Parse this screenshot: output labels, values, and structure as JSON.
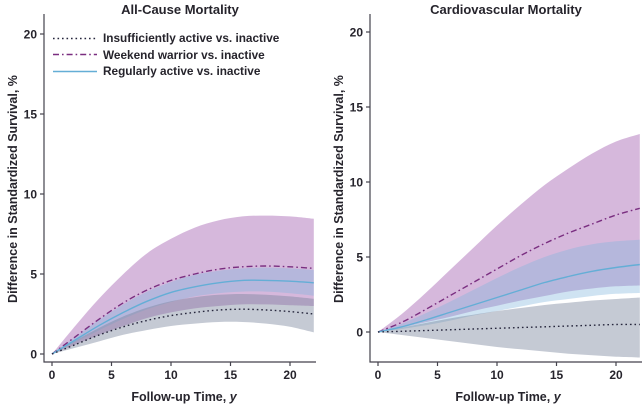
{
  "figure": {
    "x_axis_label": "Follow-up Time,",
    "x_axis_unit": "y",
    "y_axis_label": "Difference in Standardized Survival, %",
    "x_ticks": [
      "0",
      "5",
      "10",
      "15",
      "20"
    ],
    "y_ticks": [
      "0",
      "5",
      "10",
      "15",
      "20"
    ]
  },
  "legend": {
    "position": "top-left of first panel",
    "items": [
      {
        "label": "Insufficiently active vs. inactive",
        "series": "insufficiently_active",
        "style": "dotted"
      },
      {
        "label": "Weekend warrior vs. inactive",
        "series": "weekend_warrior",
        "style": "dash-dot"
      },
      {
        "label": "Regularly active vs. inactive",
        "series": "regularly_active",
        "style": "solid"
      }
    ]
  },
  "colors": {
    "text": "#26242c",
    "axis": "#44424c",
    "insufficiently_active_line": "#26263c",
    "weekend_warrior_line": "#7a2e80",
    "regularly_active_line": "#64aed6",
    "insufficiently_active_band": "rgba(117,129,153,0.42)",
    "weekend_warrior_band": "rgba(177,118,187,0.52)",
    "regularly_active_band": "rgba(129,181,221,0.38)"
  },
  "chart_data": [
    {
      "type": "line",
      "title": "All-Cause Mortality",
      "xlabel": "Follow-up Time, y",
      "ylabel": "Difference in Standardized Survival, %",
      "xlim": [
        0,
        22.5
      ],
      "ylim": [
        -0.5,
        21
      ],
      "grid": false,
      "x": [
        0,
        2,
        4,
        6,
        8,
        10,
        12,
        14,
        16,
        18,
        20,
        22
      ],
      "series": [
        {
          "name": "Weekend warrior vs. inactive",
          "line_style": "dash-dot",
          "color": "#7a2e80",
          "band_color": "rgba(177,118,187,0.52)",
          "values": [
            0,
            1.1,
            2.2,
            3.2,
            4.0,
            4.6,
            5.0,
            5.3,
            5.45,
            5.5,
            5.45,
            5.35
          ],
          "ci_upper": [
            0,
            1.8,
            3.5,
            5.0,
            6.3,
            7.2,
            7.9,
            8.35,
            8.6,
            8.65,
            8.6,
            8.45
          ],
          "ci_lower": [
            0,
            0.6,
            1.2,
            1.75,
            2.25,
            2.6,
            2.85,
            3.0,
            3.1,
            3.1,
            3.05,
            3.0
          ]
        },
        {
          "name": "Regularly active vs. inactive",
          "line_style": "solid",
          "color": "#64aed6",
          "band_color": "rgba(129,181,221,0.38)",
          "values": [
            0,
            0.9,
            1.8,
            2.6,
            3.3,
            3.85,
            4.2,
            4.45,
            4.6,
            4.6,
            4.55,
            4.45
          ],
          "ci_upper": [
            0,
            1.1,
            2.15,
            3.1,
            3.9,
            4.5,
            4.95,
            5.2,
            5.35,
            5.4,
            5.35,
            5.25
          ],
          "ci_lower": [
            0,
            0.75,
            1.5,
            2.2,
            2.8,
            3.25,
            3.6,
            3.8,
            3.9,
            3.9,
            3.8,
            3.65
          ]
        },
        {
          "name": "Insufficiently active vs. inactive",
          "line_style": "dotted",
          "color": "#26263c",
          "band_color": "rgba(117,129,153,0.42)",
          "values": [
            0,
            0.6,
            1.2,
            1.7,
            2.1,
            2.4,
            2.6,
            2.75,
            2.8,
            2.75,
            2.65,
            2.5
          ],
          "ci_upper": [
            0,
            0.85,
            1.65,
            2.35,
            2.9,
            3.3,
            3.55,
            3.7,
            3.75,
            3.7,
            3.6,
            3.45
          ],
          "ci_lower": [
            0,
            0.4,
            0.8,
            1.2,
            1.5,
            1.75,
            1.9,
            2.0,
            2.0,
            1.9,
            1.7,
            1.35
          ]
        }
      ]
    },
    {
      "type": "line",
      "title": "Cardiovascular Mortality",
      "xlabel": "Follow-up Time, y",
      "ylabel": "Difference in Standardized Survival, %",
      "xlim": [
        0,
        22.5
      ],
      "ylim": [
        -2,
        21
      ],
      "grid": false,
      "x": [
        0,
        2,
        4,
        6,
        8,
        10,
        12,
        14,
        16,
        18,
        20,
        22
      ],
      "series": [
        {
          "name": "Weekend warrior vs. inactive",
          "line_style": "dash-dot",
          "color": "#7a2e80",
          "band_color": "rgba(177,118,187,0.52)",
          "values": [
            0,
            0.65,
            1.5,
            2.4,
            3.3,
            4.2,
            5.1,
            5.9,
            6.6,
            7.2,
            7.8,
            8.25
          ],
          "ci_upper": [
            0,
            1.2,
            2.6,
            4.1,
            5.6,
            7.1,
            8.5,
            9.8,
            10.9,
            11.9,
            12.7,
            13.2
          ],
          "ci_lower": [
            0,
            0.3,
            0.65,
            1.0,
            1.4,
            1.75,
            2.1,
            2.4,
            2.7,
            2.9,
            3.05,
            3.1
          ]
        },
        {
          "name": "Regularly active vs. inactive",
          "line_style": "solid",
          "color": "#64aed6",
          "band_color": "rgba(129,181,221,0.38)",
          "values": [
            0,
            0.35,
            0.8,
            1.3,
            1.8,
            2.3,
            2.8,
            3.3,
            3.7,
            4.05,
            4.3,
            4.5
          ],
          "ci_upper": [
            0,
            0.55,
            1.25,
            2.0,
            2.8,
            3.6,
            4.35,
            5.0,
            5.5,
            5.85,
            6.05,
            6.15
          ],
          "ci_lower": [
            0,
            0.2,
            0.45,
            0.75,
            1.1,
            1.4,
            1.7,
            2.0,
            2.2,
            2.4,
            2.55,
            2.6
          ]
        },
        {
          "name": "Insufficiently active vs. inactive",
          "line_style": "dotted",
          "color": "#26263c",
          "band_color": "rgba(117,129,153,0.42)",
          "values": [
            0,
            0.05,
            0.1,
            0.15,
            0.2,
            0.25,
            0.3,
            0.35,
            0.4,
            0.45,
            0.5,
            0.5
          ],
          "ci_upper": [
            0,
            0.3,
            0.6,
            0.9,
            1.15,
            1.4,
            1.6,
            1.8,
            1.95,
            2.1,
            2.2,
            2.3
          ],
          "ci_lower": [
            0,
            -0.2,
            -0.4,
            -0.6,
            -0.8,
            -1.0,
            -1.15,
            -1.3,
            -1.45,
            -1.55,
            -1.65,
            -1.7
          ]
        }
      ]
    }
  ]
}
